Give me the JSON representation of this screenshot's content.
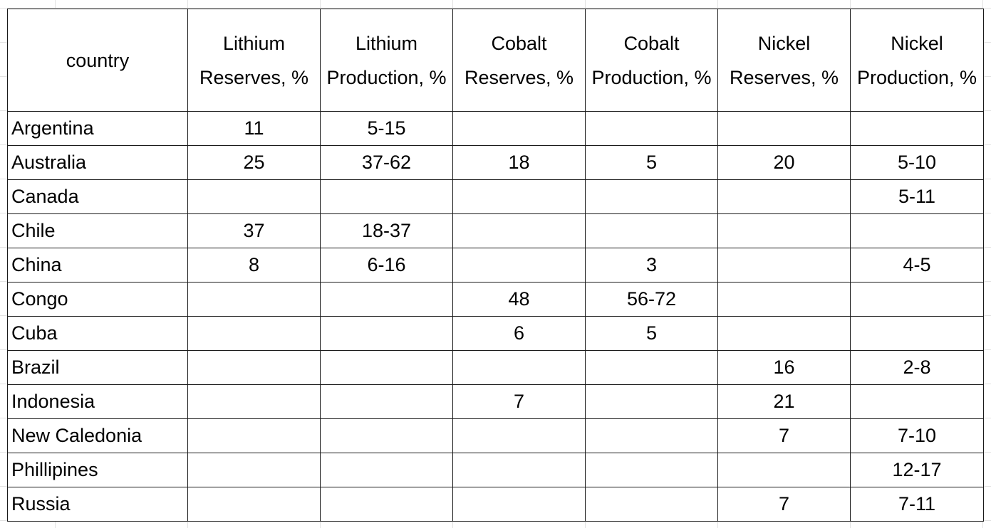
{
  "table": {
    "headers": [
      "country",
      "Lithium Reserves, %",
      "Lithium Production, %",
      "Cobalt Reserves, %",
      "Cobalt Production, %",
      "Nickel Reserves, %",
      "Nickel Production, %"
    ],
    "rows": [
      [
        "Argentina",
        "11",
        "5-15",
        null,
        null,
        null,
        null
      ],
      [
        "Australia",
        "25",
        "37-62",
        "18",
        "5",
        "20",
        "5-10"
      ],
      [
        "Canada",
        null,
        null,
        null,
        null,
        null,
        "5-11"
      ],
      [
        "Chile",
        "37",
        "18-37",
        null,
        null,
        null,
        null
      ],
      [
        "China",
        "8",
        "6-16",
        null,
        "3",
        null,
        "4-5"
      ],
      [
        "Congo",
        null,
        null,
        "48",
        "56-72",
        null,
        null
      ],
      [
        "Cuba",
        null,
        null,
        "6",
        "5",
        null,
        null
      ],
      [
        "Brazil",
        null,
        null,
        null,
        null,
        "16",
        "2-8"
      ],
      [
        "Indonesia",
        null,
        null,
        "7",
        null,
        "21",
        null
      ],
      [
        "New Caledonia",
        null,
        null,
        null,
        null,
        "7",
        "7-10"
      ],
      [
        "Phillipines",
        null,
        null,
        null,
        null,
        null,
        "12-17"
      ],
      [
        "Russia",
        null,
        null,
        null,
        null,
        "7",
        "7-11"
      ]
    ]
  }
}
